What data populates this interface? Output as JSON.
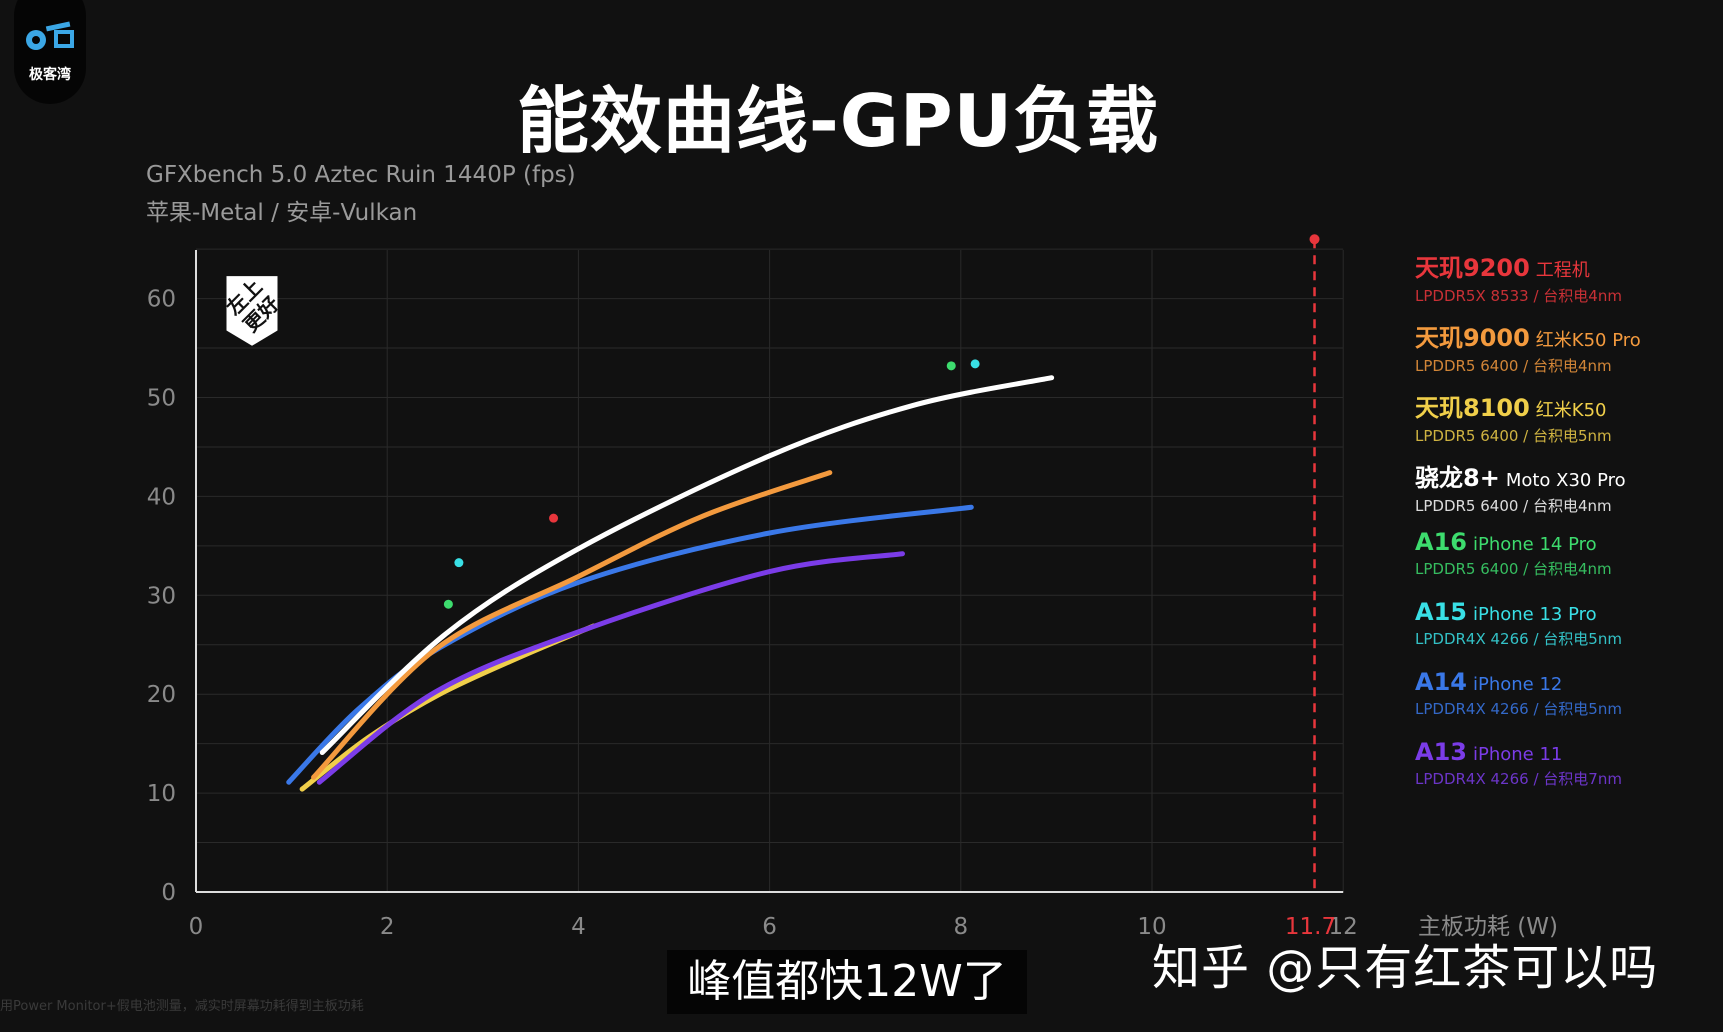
{
  "logo": {
    "text": "极客湾"
  },
  "title": "能效曲线-GPU负载",
  "subtitle": [
    "GFXbench 5.0 Aztec Ruin 1440P (fps)",
    "苹果-Metal / 安卓-Vulkan"
  ],
  "badge": [
    "左上",
    "更好"
  ],
  "note": "用Power Monitor+假电池测量，减实时屏幕功耗得到主板功耗",
  "caption": "峰值都快12W了",
  "watermark": "知乎 @只有红茶可以吗",
  "colors": {
    "bg": "#111111",
    "grid": "#2a2a2a",
    "axis": "#dddddd"
  },
  "chart_data": {
    "type": "line",
    "title": "能效曲线-GPU负载",
    "xlabel": "主板功耗 (W)",
    "ylabel": "GFXbench 5.0 Aztec Ruin 1440P (fps)",
    "xlim": [
      0,
      12
    ],
    "ylim": [
      0,
      65
    ],
    "xticks": [
      "0",
      "2",
      "4",
      "6",
      "8",
      "10",
      "12"
    ],
    "yticks": [
      "0",
      "10",
      "20",
      "30",
      "40",
      "50",
      "60"
    ],
    "grid": true,
    "legend_position": "right",
    "marker_line": {
      "x": 11.7,
      "label": "11.7",
      "color": "#e8363c",
      "point_y": 66
    },
    "series": [
      {
        "name": "天玑9200",
        "device": "工程机",
        "memory": "LPDDR5X 8533 / 台积电4nm",
        "color": "#e8363c",
        "points": [
          [
            3.74,
            37.8
          ]
        ]
      },
      {
        "name": "天玑9000",
        "device": "红米K50 Pro",
        "memory": "LPDDR5 6400 / 台积电4nm",
        "color": "#f39a3e",
        "curve": [
          [
            1.23,
            11.6
          ],
          [
            2.5,
            24.5
          ],
          [
            4.0,
            31.9
          ],
          [
            5.3,
            38.0
          ],
          [
            6.63,
            42.4
          ]
        ]
      },
      {
        "name": "天玑8100",
        "device": "红米K50",
        "memory": "LPDDR5 6400 / 台积电5nm",
        "color": "#f0cf4a",
        "curve": [
          [
            1.11,
            10.4
          ],
          [
            1.8,
            15.6
          ],
          [
            2.55,
            20.0
          ],
          [
            3.4,
            23.8
          ],
          [
            4.16,
            26.9
          ]
        ]
      },
      {
        "name": "骁龙8+",
        "device": "Moto X30 Pro",
        "memory": "LPDDR5 6400 / 台积电4nm",
        "color": "#ffffff",
        "curve": [
          [
            1.32,
            14.1
          ],
          [
            2.6,
            26.0
          ],
          [
            4.0,
            34.7
          ],
          [
            6.0,
            44.1
          ],
          [
            7.5,
            49.2
          ],
          [
            8.95,
            52.0
          ]
        ]
      },
      {
        "name": "A16",
        "device": "iPhone 14 Pro",
        "memory": "LPDDR5 6400 / 台积电4nm",
        "color": "#3ddc6e",
        "points": [
          [
            2.64,
            29.1
          ],
          [
            7.9,
            53.2
          ]
        ]
      },
      {
        "name": "A15",
        "device": "iPhone 13 Pro",
        "memory": "LPDDR4X 4266 / 台积电5nm",
        "color": "#39e0e6",
        "points": [
          [
            2.75,
            33.3
          ],
          [
            8.15,
            53.4
          ]
        ]
      },
      {
        "name": "A14",
        "device": "iPhone 12",
        "memory": "LPDDR4X 4266 / 台积电5nm",
        "color": "#3a78e8",
        "curve": [
          [
            0.97,
            11.1
          ],
          [
            1.7,
            18.5
          ],
          [
            2.55,
            24.7
          ],
          [
            4.0,
            31.3
          ],
          [
            6.0,
            36.3
          ],
          [
            8.11,
            38.9
          ]
        ]
      },
      {
        "name": "A13",
        "device": "iPhone 11",
        "memory": "LPDDR4X 4266 / 台积电7nm",
        "color": "#7b3ce8",
        "curve": [
          [
            1.29,
            11.1
          ],
          [
            2.5,
            20.2
          ],
          [
            4.0,
            26.3
          ],
          [
            6.0,
            32.4
          ],
          [
            7.39,
            34.2
          ]
        ]
      }
    ]
  }
}
